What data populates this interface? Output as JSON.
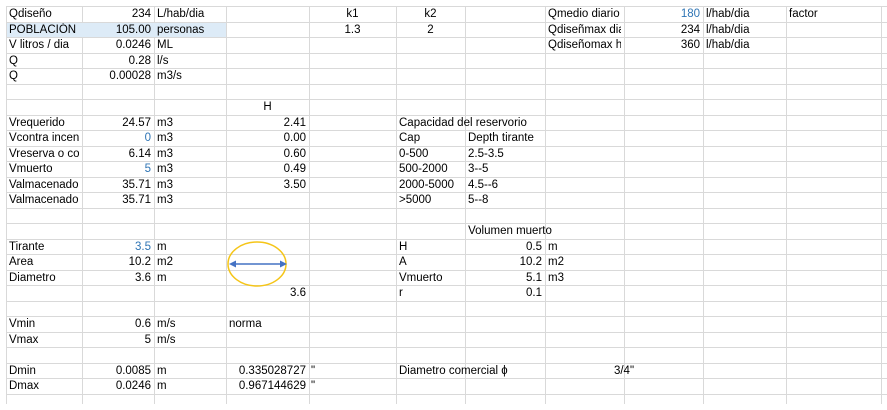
{
  "colors": {
    "blue_value": "#2f75b5",
    "highlight_fill": "#ddebf7",
    "grid": "#d9d9d9",
    "ellipse": "#f5c518",
    "arrow": "#4472c4"
  },
  "icons": {
    "shape": "yellow-ellipse-with-double-arrow"
  },
  "cells": [
    {
      "r": 0,
      "c": "A",
      "v": "Qdiseño"
    },
    {
      "r": 0,
      "c": "B",
      "v": "234"
    },
    {
      "r": 0,
      "c": "C",
      "v": "L/hab/dia"
    },
    {
      "r": 0,
      "c": "E",
      "v": "k1"
    },
    {
      "r": 0,
      "c": "F",
      "v": "k2"
    },
    {
      "r": 0,
      "c": "H",
      "v": "Qmedio diario"
    },
    {
      "r": 0,
      "c": "I",
      "v": "180"
    },
    {
      "r": 0,
      "c": "J",
      "v": "l/hab/dia"
    },
    {
      "r": 0,
      "c": "K",
      "v": "factor"
    },
    {
      "r": 1,
      "c": "A",
      "v": "POBLACIÓN"
    },
    {
      "r": 1,
      "c": "B",
      "v": "105.00"
    },
    {
      "r": 1,
      "c": "C",
      "v": "personas"
    },
    {
      "r": 1,
      "c": "E",
      "v": "1.3"
    },
    {
      "r": 1,
      "c": "F",
      "v": "2"
    },
    {
      "r": 1,
      "c": "H",
      "v": "Qdiseñmax diar"
    },
    {
      "r": 1,
      "c": "I",
      "v": "234"
    },
    {
      "r": 1,
      "c": "J",
      "v": "l/hab/dia"
    },
    {
      "r": 2,
      "c": "A",
      "v": "V litros / dia"
    },
    {
      "r": 2,
      "c": "B",
      "v": "0.0246"
    },
    {
      "r": 2,
      "c": "C",
      "v": "ML"
    },
    {
      "r": 2,
      "c": "H",
      "v": "Qdiseñomax hora"
    },
    {
      "r": 2,
      "c": "I",
      "v": "360"
    },
    {
      "r": 2,
      "c": "J",
      "v": "l/hab/dia"
    },
    {
      "r": 3,
      "c": "A",
      "v": "Q"
    },
    {
      "r": 3,
      "c": "B",
      "v": "0.28"
    },
    {
      "r": 3,
      "c": "C",
      "v": "l/s"
    },
    {
      "r": 4,
      "c": "A",
      "v": "Q"
    },
    {
      "r": 4,
      "c": "B",
      "v": "0.00028"
    },
    {
      "r": 4,
      "c": "C",
      "v": "m3/s"
    },
    {
      "r": 6,
      "c": "D",
      "v": "H"
    },
    {
      "r": 7,
      "c": "A",
      "v": "Vrequerido"
    },
    {
      "r": 7,
      "c": "B",
      "v": "24.57"
    },
    {
      "r": 7,
      "c": "C",
      "v": "m3"
    },
    {
      "r": 7,
      "c": "D",
      "v": "2.41"
    },
    {
      "r": 7,
      "c": "F",
      "v": "Capacidad del reservorio"
    },
    {
      "r": 8,
      "c": "A",
      "v": "Vcontra incencio"
    },
    {
      "r": 8,
      "c": "B",
      "v": "0"
    },
    {
      "r": 8,
      "c": "C",
      "v": "m3"
    },
    {
      "r": 8,
      "c": "D",
      "v": "0.00"
    },
    {
      "r": 8,
      "c": "F",
      "v": "Cap"
    },
    {
      "r": 8,
      "c": "G",
      "v": "Depth tirante"
    },
    {
      "r": 9,
      "c": "A",
      "v": "Vreserva o contig"
    },
    {
      "r": 9,
      "c": "B",
      "v": "6.14"
    },
    {
      "r": 9,
      "c": "C",
      "v": "m3"
    },
    {
      "r": 9,
      "c": "D",
      "v": "0.60"
    },
    {
      "r": 9,
      "c": "F",
      "v": "0-500"
    },
    {
      "r": 9,
      "c": "G",
      "v": "2.5-3.5"
    },
    {
      "r": 10,
      "c": "A",
      "v": "Vmuerto"
    },
    {
      "r": 10,
      "c": "B",
      "v": "5"
    },
    {
      "r": 10,
      "c": "C",
      "v": "m3"
    },
    {
      "r": 10,
      "c": "D",
      "v": "0.49"
    },
    {
      "r": 10,
      "c": "F",
      "v": "500-2000"
    },
    {
      "r": 10,
      "c": "G",
      "v": "3--5"
    },
    {
      "r": 11,
      "c": "A",
      "v": "Valmacenado"
    },
    {
      "r": 11,
      "c": "B",
      "v": "35.71"
    },
    {
      "r": 11,
      "c": "C",
      "v": "m3"
    },
    {
      "r": 11,
      "c": "D",
      "v": "3.50"
    },
    {
      "r": 11,
      "c": "F",
      "v": "2000-5000"
    },
    {
      "r": 11,
      "c": "G",
      "v": "4.5--6"
    },
    {
      "r": 12,
      "c": "A",
      "v": "Valmacenado"
    },
    {
      "r": 12,
      "c": "B",
      "v": "35.71"
    },
    {
      "r": 12,
      "c": "C",
      "v": "m3"
    },
    {
      "r": 12,
      "c": "F",
      "v": ">5000"
    },
    {
      "r": 12,
      "c": "G",
      "v": "5--8"
    },
    {
      "r": 14,
      "c": "F",
      "v": "Volumen muerto"
    },
    {
      "r": 15,
      "c": "A",
      "v": "Tirante"
    },
    {
      "r": 15,
      "c": "B",
      "v": "3.5"
    },
    {
      "r": 15,
      "c": "C",
      "v": "m"
    },
    {
      "r": 15,
      "c": "F",
      "v": "H"
    },
    {
      "r": 15,
      "c": "G",
      "v": "0.5"
    },
    {
      "r": 15,
      "c": "H",
      "v": "m"
    },
    {
      "r": 16,
      "c": "A",
      "v": "Area"
    },
    {
      "r": 16,
      "c": "B",
      "v": "10.2"
    },
    {
      "r": 16,
      "c": "C",
      "v": "m2"
    },
    {
      "r": 16,
      "c": "F",
      "v": "A"
    },
    {
      "r": 16,
      "c": "G",
      "v": "10.2"
    },
    {
      "r": 16,
      "c": "H",
      "v": "m2"
    },
    {
      "r": 17,
      "c": "A",
      "v": "Diametro"
    },
    {
      "r": 17,
      "c": "B",
      "v": "3.6"
    },
    {
      "r": 17,
      "c": "C",
      "v": "m"
    },
    {
      "r": 17,
      "c": "F",
      "v": "Vmuerto"
    },
    {
      "r": 17,
      "c": "G",
      "v": "5.1"
    },
    {
      "r": 17,
      "c": "H",
      "v": "m3"
    },
    {
      "r": 18,
      "c": "D",
      "v": "3.6"
    },
    {
      "r": 18,
      "c": "F",
      "v": "r"
    },
    {
      "r": 18,
      "c": "G",
      "v": "0.1"
    },
    {
      "r": 20,
      "c": "A",
      "v": "Vmin"
    },
    {
      "r": 20,
      "c": "B",
      "v": "0.6"
    },
    {
      "r": 20,
      "c": "C",
      "v": "m/s"
    },
    {
      "r": 20,
      "c": "D",
      "v": "norma"
    },
    {
      "r": 21,
      "c": "A",
      "v": "Vmax"
    },
    {
      "r": 21,
      "c": "B",
      "v": "5"
    },
    {
      "r": 21,
      "c": "C",
      "v": "m/s"
    },
    {
      "r": 23,
      "c": "A",
      "v": "Dmin"
    },
    {
      "r": 23,
      "c": "B",
      "v": "0.0085"
    },
    {
      "r": 23,
      "c": "C",
      "v": "m"
    },
    {
      "r": 23,
      "c": "D",
      "v": "0.335028727"
    },
    {
      "r": 23,
      "c": "E",
      "v": "\""
    },
    {
      "r": 23,
      "c": "F",
      "v": "Diametro comercial ɸ"
    },
    {
      "r": 23,
      "c": "H",
      "v": "3/4\""
    },
    {
      "r": 24,
      "c": "A",
      "v": "Dmax"
    },
    {
      "r": 24,
      "c": "B",
      "v": "0.0246"
    },
    {
      "r": 24,
      "c": "C",
      "v": "m"
    },
    {
      "r": 24,
      "c": "D",
      "v": "0.967144629"
    },
    {
      "r": 24,
      "c": "E",
      "v": "\""
    }
  ]
}
